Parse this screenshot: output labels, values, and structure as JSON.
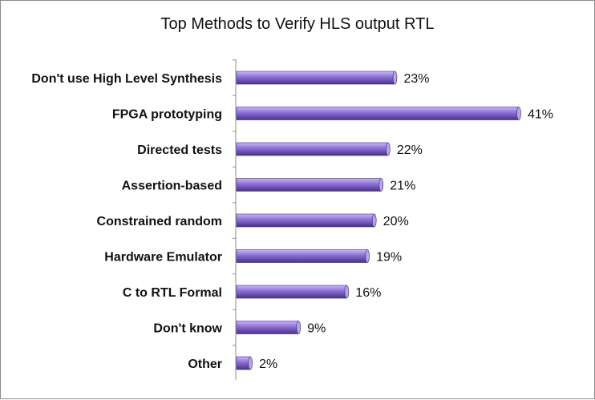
{
  "chart_data": {
    "type": "bar",
    "orientation": "horizontal",
    "title": "Top Methods to Verify HLS output RTL",
    "categories": [
      "Don't use High Level Synthesis",
      "FPGA prototyping",
      "Directed tests",
      "Assertion-based",
      "Constrained random",
      "Hardware Emulator",
      "C to RTL Formal",
      "Don't know",
      "Other"
    ],
    "values": [
      23,
      41,
      22,
      21,
      20,
      19,
      16,
      9,
      2
    ],
    "value_labels": [
      "23%",
      "41%",
      "22%",
      "21%",
      "20%",
      "19%",
      "16%",
      "9%",
      "2%"
    ],
    "xlim": [
      0,
      41
    ],
    "grid": false,
    "legend": "none",
    "bar_color": "#8a6fd1"
  }
}
